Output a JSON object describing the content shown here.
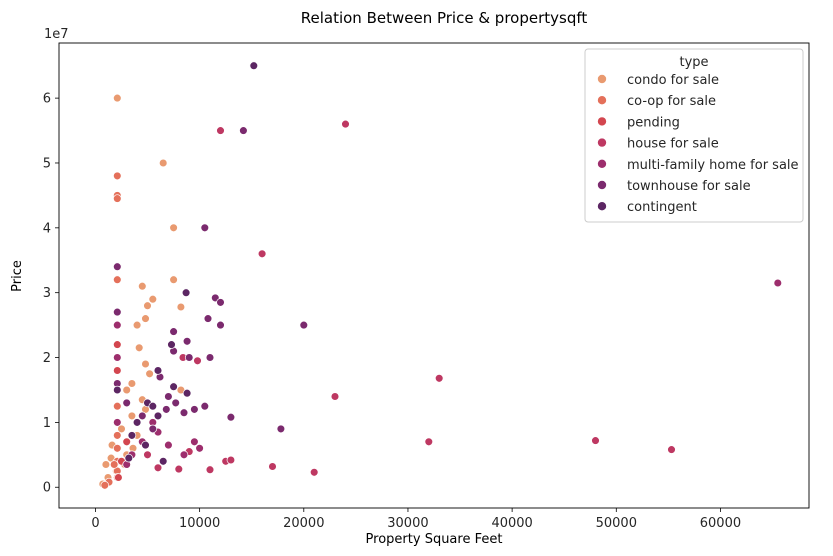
{
  "chart_data": {
    "type": "scatter",
    "title": "Relation Between Price & propertysqft",
    "xlabel": "Property Square Feet",
    "ylabel": "Price",
    "y_offset_label": "1e7",
    "xlim": [
      -3500,
      68500
    ],
    "ylim": [
      -3200000,
      68500000
    ],
    "x_ticks": [
      0,
      10000,
      20000,
      30000,
      40000,
      50000,
      60000
    ],
    "x_tick_labels": [
      "0",
      "10000",
      "20000",
      "30000",
      "40000",
      "50000",
      "60000"
    ],
    "y_ticks": [
      0,
      10000000,
      20000000,
      30000000,
      40000000,
      50000000,
      60000000
    ],
    "y_tick_labels": [
      "0",
      "1",
      "2",
      "3",
      "4",
      "5",
      "6"
    ],
    "grid": false,
    "legend": {
      "title": "type",
      "placement": "top-right",
      "entries": [
        "condo for sale",
        "co-op for sale",
        "pending",
        "house for sale",
        "multi-family home for sale",
        "townhouse for sale",
        "contingent"
      ]
    },
    "colors": {
      "condo for sale": "#e99a70",
      "co-op for sale": "#e4705a",
      "pending": "#d3464f",
      "house for sale": "#be3862",
      "multi-family home for sale": "#9d2e6d",
      "townhouse for sale": "#7b2a6e",
      "contingent": "#5c2663"
    },
    "series": [
      {
        "name": "condo for sale",
        "points": [
          [
            2100,
            60000000
          ],
          [
            6500,
            50000000
          ],
          [
            7500,
            40000000
          ],
          [
            4500,
            31000000
          ],
          [
            7500,
            32000000
          ],
          [
            5000,
            28000000
          ],
          [
            5500,
            29000000
          ],
          [
            4000,
            25000000
          ],
          [
            4800,
            26000000
          ],
          [
            8200,
            27800000
          ],
          [
            4200,
            21500000
          ],
          [
            4800,
            19000000
          ],
          [
            8200,
            15000000
          ],
          [
            3500,
            16000000
          ],
          [
            5200,
            17500000
          ],
          [
            3000,
            15000000
          ],
          [
            4500,
            13500000
          ],
          [
            3500,
            11000000
          ],
          [
            4800,
            12000000
          ],
          [
            2500,
            9000000
          ],
          [
            1600,
            6500000
          ],
          [
            1000,
            3500000
          ],
          [
            3000,
            5000000
          ],
          [
            4000,
            8000000
          ],
          [
            1200,
            1500000
          ],
          [
            2000,
            2500000
          ],
          [
            700,
            500000
          ],
          [
            2800,
            3500000
          ],
          [
            1500,
            4500000
          ],
          [
            3600,
            6000000
          ]
        ]
      },
      {
        "name": "co-op for sale",
        "points": [
          [
            2100,
            48000000
          ],
          [
            2100,
            45000000
          ],
          [
            2100,
            44500000
          ],
          [
            2100,
            32000000
          ],
          [
            2100,
            12500000
          ],
          [
            2100,
            8000000
          ],
          [
            2100,
            6000000
          ],
          [
            2100,
            4000000
          ],
          [
            2100,
            2500000
          ],
          [
            2100,
            1500000
          ],
          [
            1300,
            800000
          ],
          [
            1800,
            3500000
          ],
          [
            900,
            300000
          ]
        ]
      },
      {
        "name": "pending",
        "points": [
          [
            2100,
            22000000
          ],
          [
            2100,
            18000000
          ],
          [
            3000,
            7000000
          ],
          [
            2500,
            4000000
          ],
          [
            2200,
            1500000
          ]
        ]
      },
      {
        "name": "house for sale",
        "points": [
          [
            16000,
            36000000
          ],
          [
            24000,
            56000000
          ],
          [
            12000,
            55000000
          ],
          [
            9800,
            19500000
          ],
          [
            8400,
            20000000
          ],
          [
            23000,
            14000000
          ],
          [
            33000,
            16800000
          ],
          [
            32000,
            7000000
          ],
          [
            48000,
            7200000
          ],
          [
            55300,
            5800000
          ],
          [
            12500,
            4000000
          ],
          [
            13000,
            4200000
          ],
          [
            11000,
            2700000
          ],
          [
            17000,
            3200000
          ],
          [
            21000,
            2300000
          ],
          [
            8000,
            2800000
          ],
          [
            9000,
            5500000
          ],
          [
            5000,
            5000000
          ],
          [
            6000,
            3000000
          ]
        ]
      },
      {
        "name": "multi-family home for sale",
        "points": [
          [
            65500,
            31500000
          ],
          [
            9500,
            7000000
          ],
          [
            10000,
            6000000
          ],
          [
            8500,
            5000000
          ],
          [
            7000,
            6500000
          ],
          [
            6000,
            8500000
          ],
          [
            5500,
            10000000
          ],
          [
            3500,
            5000000
          ],
          [
            4500,
            7000000
          ],
          [
            2100,
            25000000
          ],
          [
            2100,
            20000000
          ],
          [
            2100,
            10000000
          ],
          [
            3000,
            3500000
          ]
        ]
      },
      {
        "name": "townhouse for sale",
        "points": [
          [
            14200,
            55000000
          ],
          [
            10500,
            40000000
          ],
          [
            20000,
            25000000
          ],
          [
            11500,
            29200000
          ],
          [
            12000,
            28500000
          ],
          [
            10800,
            26000000
          ],
          [
            12000,
            25000000
          ],
          [
            7500,
            24000000
          ],
          [
            8800,
            22500000
          ],
          [
            11000,
            20000000
          ],
          [
            7500,
            21000000
          ],
          [
            9000,
            20000000
          ],
          [
            10500,
            12500000
          ],
          [
            13000,
            10800000
          ],
          [
            17800,
            9000000
          ],
          [
            7000,
            14000000
          ],
          [
            6200,
            17000000
          ],
          [
            6800,
            12000000
          ],
          [
            5500,
            9000000
          ],
          [
            4500,
            11000000
          ],
          [
            2100,
            34000000
          ],
          [
            2100,
            27000000
          ],
          [
            2100,
            16000000
          ],
          [
            7700,
            13000000
          ],
          [
            8500,
            11500000
          ],
          [
            3000,
            13000000
          ],
          [
            9500,
            12000000
          ]
        ]
      },
      {
        "name": "contingent",
        "points": [
          [
            15200,
            65000000
          ],
          [
            8700,
            30000000
          ],
          [
            7300,
            22000000
          ],
          [
            6000,
            18000000
          ],
          [
            5000,
            13000000
          ],
          [
            4000,
            10000000
          ],
          [
            3500,
            8000000
          ],
          [
            2100,
            15000000
          ],
          [
            6000,
            11000000
          ],
          [
            7500,
            15500000
          ],
          [
            8800,
            14500000
          ],
          [
            5500,
            12500000
          ],
          [
            4800,
            6500000
          ],
          [
            3200,
            4500000
          ],
          [
            6500,
            4000000
          ]
        ]
      }
    ]
  }
}
